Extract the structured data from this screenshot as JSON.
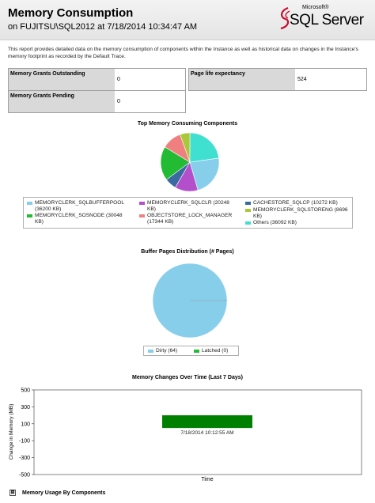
{
  "header": {
    "title": "Memory Consumption",
    "subtitle": "on FUJITSU\\SQL2012 at 7/18/2014 10:34:47 AM",
    "logo_brand": "Microsoft®",
    "logo_product": "SQL Server"
  },
  "description": "This report provides detailed data on the memory consumption of components within the Instance as well as historical data on changes in the Instance's memory footprint as recorded by the Default Trace.",
  "metrics": {
    "grants_outstanding_label": "Memory Grants Outstanding",
    "grants_outstanding_value": "0",
    "grants_pending_label": "Memory Grants Pending",
    "grants_pending_value": "0",
    "ple_label": "Page life expectancy",
    "ple_value": "524"
  },
  "chart_data": [
    {
      "type": "pie",
      "title": "Top Memory Consuming Components",
      "categories": [
        "MEMORYCLERK_SQLBUFFERPOOL (36200 KB)",
        "MEMORYCLERK_SQLCLR (20248 KB)",
        "CACHESTORE_SQLCP (10272 KB)",
        "MEMORYCLERK_SOSNODE (30048 KB)",
        "OBJECTSTORE_LOCK_MANAGER (17344 KB)",
        "MEMORYCLERK_SQLSTORENG (8696 KB)",
        "Others (36092 KB)"
      ],
      "values": [
        36200,
        20248,
        10272,
        30048,
        17344,
        8696,
        36092
      ],
      "colors": [
        "#87ceeb",
        "#b44fcc",
        "#3a6aa0",
        "#22bb33",
        "#f08080",
        "#a8c83a",
        "#40e0d0"
      ],
      "legend_position": "bottom"
    },
    {
      "type": "pie",
      "title": "Buffer Pages Distribution (# Pages)",
      "categories": [
        "Dirty (64)",
        "Latched (0)"
      ],
      "values": [
        64,
        0
      ],
      "colors": [
        "#87ceeb",
        "#22bb33"
      ],
      "legend_position": "bottom"
    },
    {
      "type": "bar",
      "title": "Memory Changes Over Time (Last 7 Days)",
      "xlabel": "Time",
      "ylabel": "Change in Memory (MB)",
      "ylim": [
        -500,
        500
      ],
      "y_ticks": [
        "500",
        "300",
        "100",
        "-100",
        "-300",
        "-500"
      ],
      "bars": [
        {
          "label": "7/18/2014 10:12:55 AM",
          "low": 50,
          "high": 200,
          "color": "#008000"
        }
      ],
      "grid": false
    }
  ],
  "footer": {
    "expander_symbol": "⊞",
    "section_label": "Memory Usage By Components"
  }
}
